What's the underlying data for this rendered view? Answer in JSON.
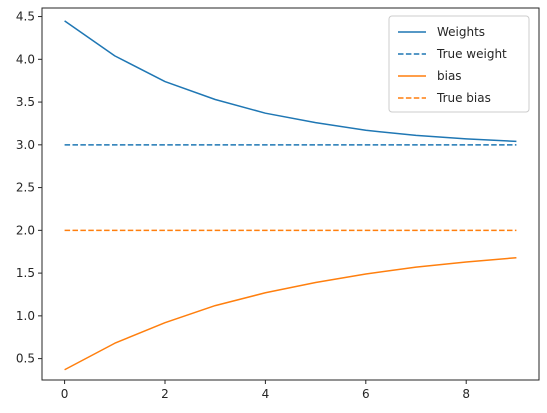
{
  "chart_data": {
    "type": "line",
    "title": "",
    "xlabel": "",
    "ylabel": "",
    "x": [
      0,
      1,
      2,
      3,
      4,
      5,
      6,
      7,
      8,
      9
    ],
    "xlim": [
      -0.45,
      9.45
    ],
    "ylim": [
      0.25,
      4.6
    ],
    "xticks": [
      0,
      2,
      4,
      6,
      8
    ],
    "yticks": [
      0.5,
      1.0,
      1.5,
      2.0,
      2.5,
      3.0,
      3.5,
      4.0,
      4.5
    ],
    "ytick_labels": [
      "0.5",
      "1.0",
      "1.5",
      "2.0",
      "2.5",
      "3.0",
      "3.5",
      "4.0",
      "4.5"
    ],
    "grid": false,
    "legend_position": "top-right",
    "series": [
      {
        "name": "Weights",
        "color": "#1f77b4",
        "style": "solid",
        "values": [
          4.45,
          4.04,
          3.74,
          3.53,
          3.37,
          3.26,
          3.17,
          3.11,
          3.07,
          3.04
        ]
      },
      {
        "name": "True weight",
        "color": "#1f77b4",
        "style": "dashed",
        "values": [
          3.0,
          3.0,
          3.0,
          3.0,
          3.0,
          3.0,
          3.0,
          3.0,
          3.0,
          3.0
        ]
      },
      {
        "name": "bias",
        "color": "#ff7f0e",
        "style": "solid",
        "values": [
          0.37,
          0.68,
          0.92,
          1.12,
          1.27,
          1.39,
          1.49,
          1.57,
          1.63,
          1.68
        ]
      },
      {
        "name": "True bias",
        "color": "#ff7f0e",
        "style": "dashed",
        "values": [
          2.0,
          2.0,
          2.0,
          2.0,
          2.0,
          2.0,
          2.0,
          2.0,
          2.0,
          2.0
        ]
      }
    ]
  }
}
